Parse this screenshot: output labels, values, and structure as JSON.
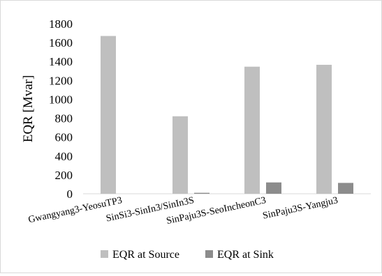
{
  "chart_data": {
    "type": "bar",
    "title": "",
    "xlabel": "",
    "ylabel": "EQR [Mvar]",
    "ylim": [
      0,
      1800
    ],
    "yticks": [
      0,
      200,
      400,
      600,
      800,
      1000,
      1200,
      1400,
      1600,
      1800
    ],
    "grid": false,
    "legend_position": "bottom",
    "categories": [
      "Gwangyang3-YeosuTP3",
      "SinSi3-SinIn3/SinIn3S",
      "SinPaju3S-SeoIncheonC3",
      "SinPaju3S-Yangju3"
    ],
    "series": [
      {
        "name": "EQR at Source",
        "color": "#bfbfbf",
        "values": [
          1670,
          820,
          1345,
          1365
        ]
      },
      {
        "name": "EQR at Sink",
        "color": "#8c8c8c",
        "values": [
          0,
          10,
          120,
          115
        ]
      }
    ]
  }
}
